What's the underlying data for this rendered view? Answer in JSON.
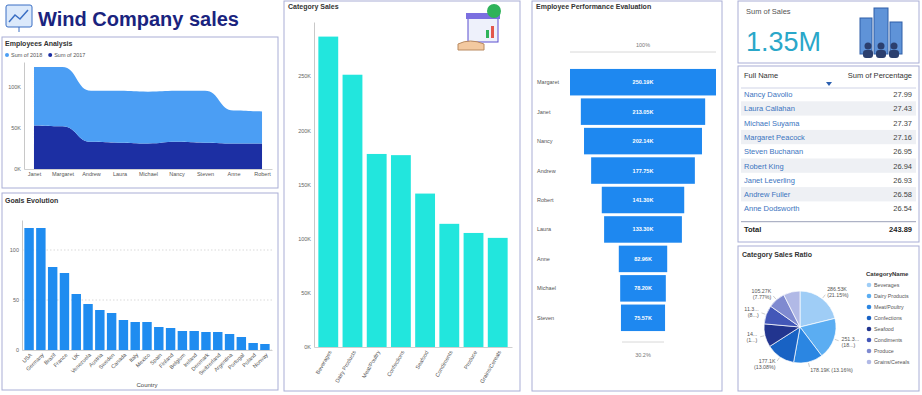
{
  "header": {
    "title": "Wind Company sales"
  },
  "chart_data": [
    {
      "type": "card",
      "title": "Sum of Sales",
      "values": [
        1350000
      ],
      "value_labels": [
        "1.35M"
      ]
    },
    {
      "type": "area",
      "title": "Employees Analysis",
      "categories": [
        "Janet",
        "Margaret",
        "Andrew",
        "Laura",
        "Michael",
        "Nancy",
        "Steven",
        "Anne",
        "Robert"
      ],
      "series": [
        {
          "name": "Sum of 2018",
          "color": "#4b9ef4",
          "values": [
            71000,
            72000,
            62000,
            63000,
            63000,
            62000,
            63000,
            40000,
            39000
          ]
        },
        {
          "name": "Sum of 2017",
          "color": "#1c2fa3",
          "values": [
            53000,
            52000,
            33000,
            32000,
            31000,
            33000,
            32000,
            31000,
            31000
          ]
        }
      ],
      "stacked": true,
      "legend": "top-left",
      "ylim": [
        0,
        130000
      ],
      "yticks": [
        {
          "value": 0,
          "label": "0K"
        },
        {
          "value": 50000,
          "label": "50K"
        },
        {
          "value": 100000,
          "label": "100K"
        }
      ]
    },
    {
      "type": "bar",
      "title": "Goals Evolution",
      "x_label": "Country",
      "categories": [
        "USA",
        "Germany",
        "Brazil",
        "France",
        "UK",
        "Venezuela",
        "Austria",
        "Sweden",
        "Canada",
        "Italy",
        "Mexico",
        "Spain",
        "Finland",
        "Belgium",
        "Ireland",
        "Denmark",
        "Switzerland",
        "Argentina",
        "Portugal",
        "Poland",
        "Norway"
      ],
      "values": [
        122,
        122,
        83,
        77,
        56,
        46,
        40,
        37,
        30,
        28,
        28,
        23,
        22,
        19,
        19,
        18,
        18,
        16,
        13,
        7,
        6
      ],
      "color": "#1f8cf0",
      "ylim": [
        0,
        130
      ],
      "yticks": [
        0,
        50,
        100
      ],
      "grid": true
    },
    {
      "type": "bar",
      "title": "Category Sales",
      "categories": [
        "Beverages",
        "Dairy Products",
        "Meat/Poultry",
        "Confections",
        "Seafood",
        "Condiments",
        "Produce",
        "Grains/Cereals"
      ],
      "values": [
        286526.95,
        251330.5,
        178188.8,
        177099.1,
        141623.09,
        113694.75,
        105268.6,
        100726.8
      ],
      "color": "#22e6dd",
      "ylim": [
        0,
        300000
      ],
      "yticks": [
        {
          "value": 0,
          "label": "0K"
        },
        {
          "value": 50000,
          "label": "50K"
        },
        {
          "value": 100000,
          "label": "100K"
        },
        {
          "value": 150000,
          "label": "150K"
        },
        {
          "value": 200000,
          "label": "200K"
        },
        {
          "value": 250000,
          "label": "250K"
        }
      ]
    },
    {
      "type": "funnel",
      "title": "Employee Performance Evaluation",
      "categories": [
        "Margaret",
        "Janet",
        "Nancy",
        "Andrew",
        "Robert",
        "Laura",
        "Anne",
        "Michael",
        "Steven"
      ],
      "values": [
        250190,
        213050,
        202140,
        177750,
        141300,
        133300,
        82960,
        78200,
        75570
      ],
      "value_labels": [
        "250.19K",
        "213.05K",
        "202.14K",
        "177.75K",
        "141.30K",
        "133.30K",
        "82.96K",
        "78.20K",
        "75.57K"
      ],
      "color": "#1e88f0",
      "data_labels": true,
      "annotations": [
        "100%",
        "30.2%"
      ]
    },
    {
      "type": "table",
      "columns": [
        "Full Name",
        "Sum of Percentage"
      ],
      "rows": [
        [
          "Nancy Davolio",
          27.99
        ],
        [
          "Laura Callahan",
          27.43
        ],
        [
          "Michael Suyama",
          27.37
        ],
        [
          "Margaret Peacock",
          27.16
        ],
        [
          "Steven Buchanan",
          26.95
        ],
        [
          "Robert King",
          26.94
        ],
        [
          "Janet Leverling",
          26.93
        ],
        [
          "Andrew Fuller",
          26.58
        ],
        [
          "Anne Dodsworth",
          26.54
        ]
      ],
      "total": [
        "Total",
        243.89
      ]
    },
    {
      "type": "pie",
      "title": "Category Sales Ratio",
      "legend_title": "CategoryName",
      "legend": "right",
      "categories": [
        "Beverages",
        "Dairy Products",
        "Meat/Poultry",
        "Confections",
        "Seafood",
        "Condiments",
        "Produce",
        "Grains/Cereals"
      ],
      "values": [
        286526.95,
        251330.5,
        178188.8,
        177099.1,
        141623.09,
        113694.75,
        105268.6,
        100726.8
      ],
      "value_labels": [
        "286.53K\n(21.15%)",
        "251.3...\n(18...)",
        "178.19K (13.16%)",
        "177.1K\n(13.08%)",
        "14...\n(1...)",
        "11.3...\n(8...)",
        "105.27K\n(7.77%)",
        null
      ],
      "colors": [
        "#9fcdf6",
        "#5badf2",
        "#2b86e2",
        "#1862c4",
        "#22358f",
        "#4357b8",
        "#7f8ad0",
        "#b1b9e6"
      ],
      "data_labels": true
    }
  ]
}
